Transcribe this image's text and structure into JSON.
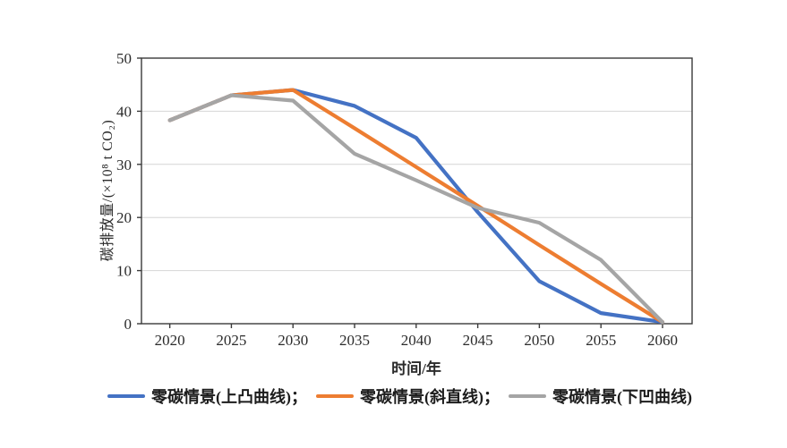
{
  "chart_data": {
    "type": "line",
    "title": "",
    "xlabel": "时间/年",
    "ylabel": "碳排放量/(×10⁸ t CO₂)",
    "x": [
      2020,
      2025,
      2030,
      2035,
      2040,
      2045,
      2050,
      2055,
      2060
    ],
    "series": [
      {
        "name": "convex-up",
        "label": "零碳情景(上凸曲线)；",
        "color": "#4472C4",
        "values": [
          38.3,
          43,
          44,
          41,
          35,
          21,
          8,
          2,
          0.3
        ]
      },
      {
        "name": "straight",
        "label": "零碳情景(斜直线)；",
        "color": "#ED7D31",
        "values": [
          38.3,
          43,
          44,
          36.8,
          29.5,
          22.2,
          14.8,
          7.5,
          0.3
        ]
      },
      {
        "name": "concave-down",
        "label": "零碳情景(下凹曲线)",
        "color": "#A5A5A5",
        "values": [
          38.3,
          43,
          42,
          32,
          27,
          21.8,
          19,
          12,
          0.3
        ]
      }
    ],
    "x_ticks": [
      2020,
      2025,
      2030,
      2035,
      2040,
      2045,
      2050,
      2055,
      2060
    ],
    "y_ticks": [
      0,
      10,
      20,
      30,
      40,
      50
    ],
    "xlim": [
      2017.7,
      2062.4
    ],
    "ylim": [
      0,
      50
    ],
    "grid": "horizontal",
    "legend_position": "bottom",
    "colors": {
      "grid": "#d6d6d6",
      "axis": "#3a3a3a",
      "background": "#ffffff"
    }
  }
}
